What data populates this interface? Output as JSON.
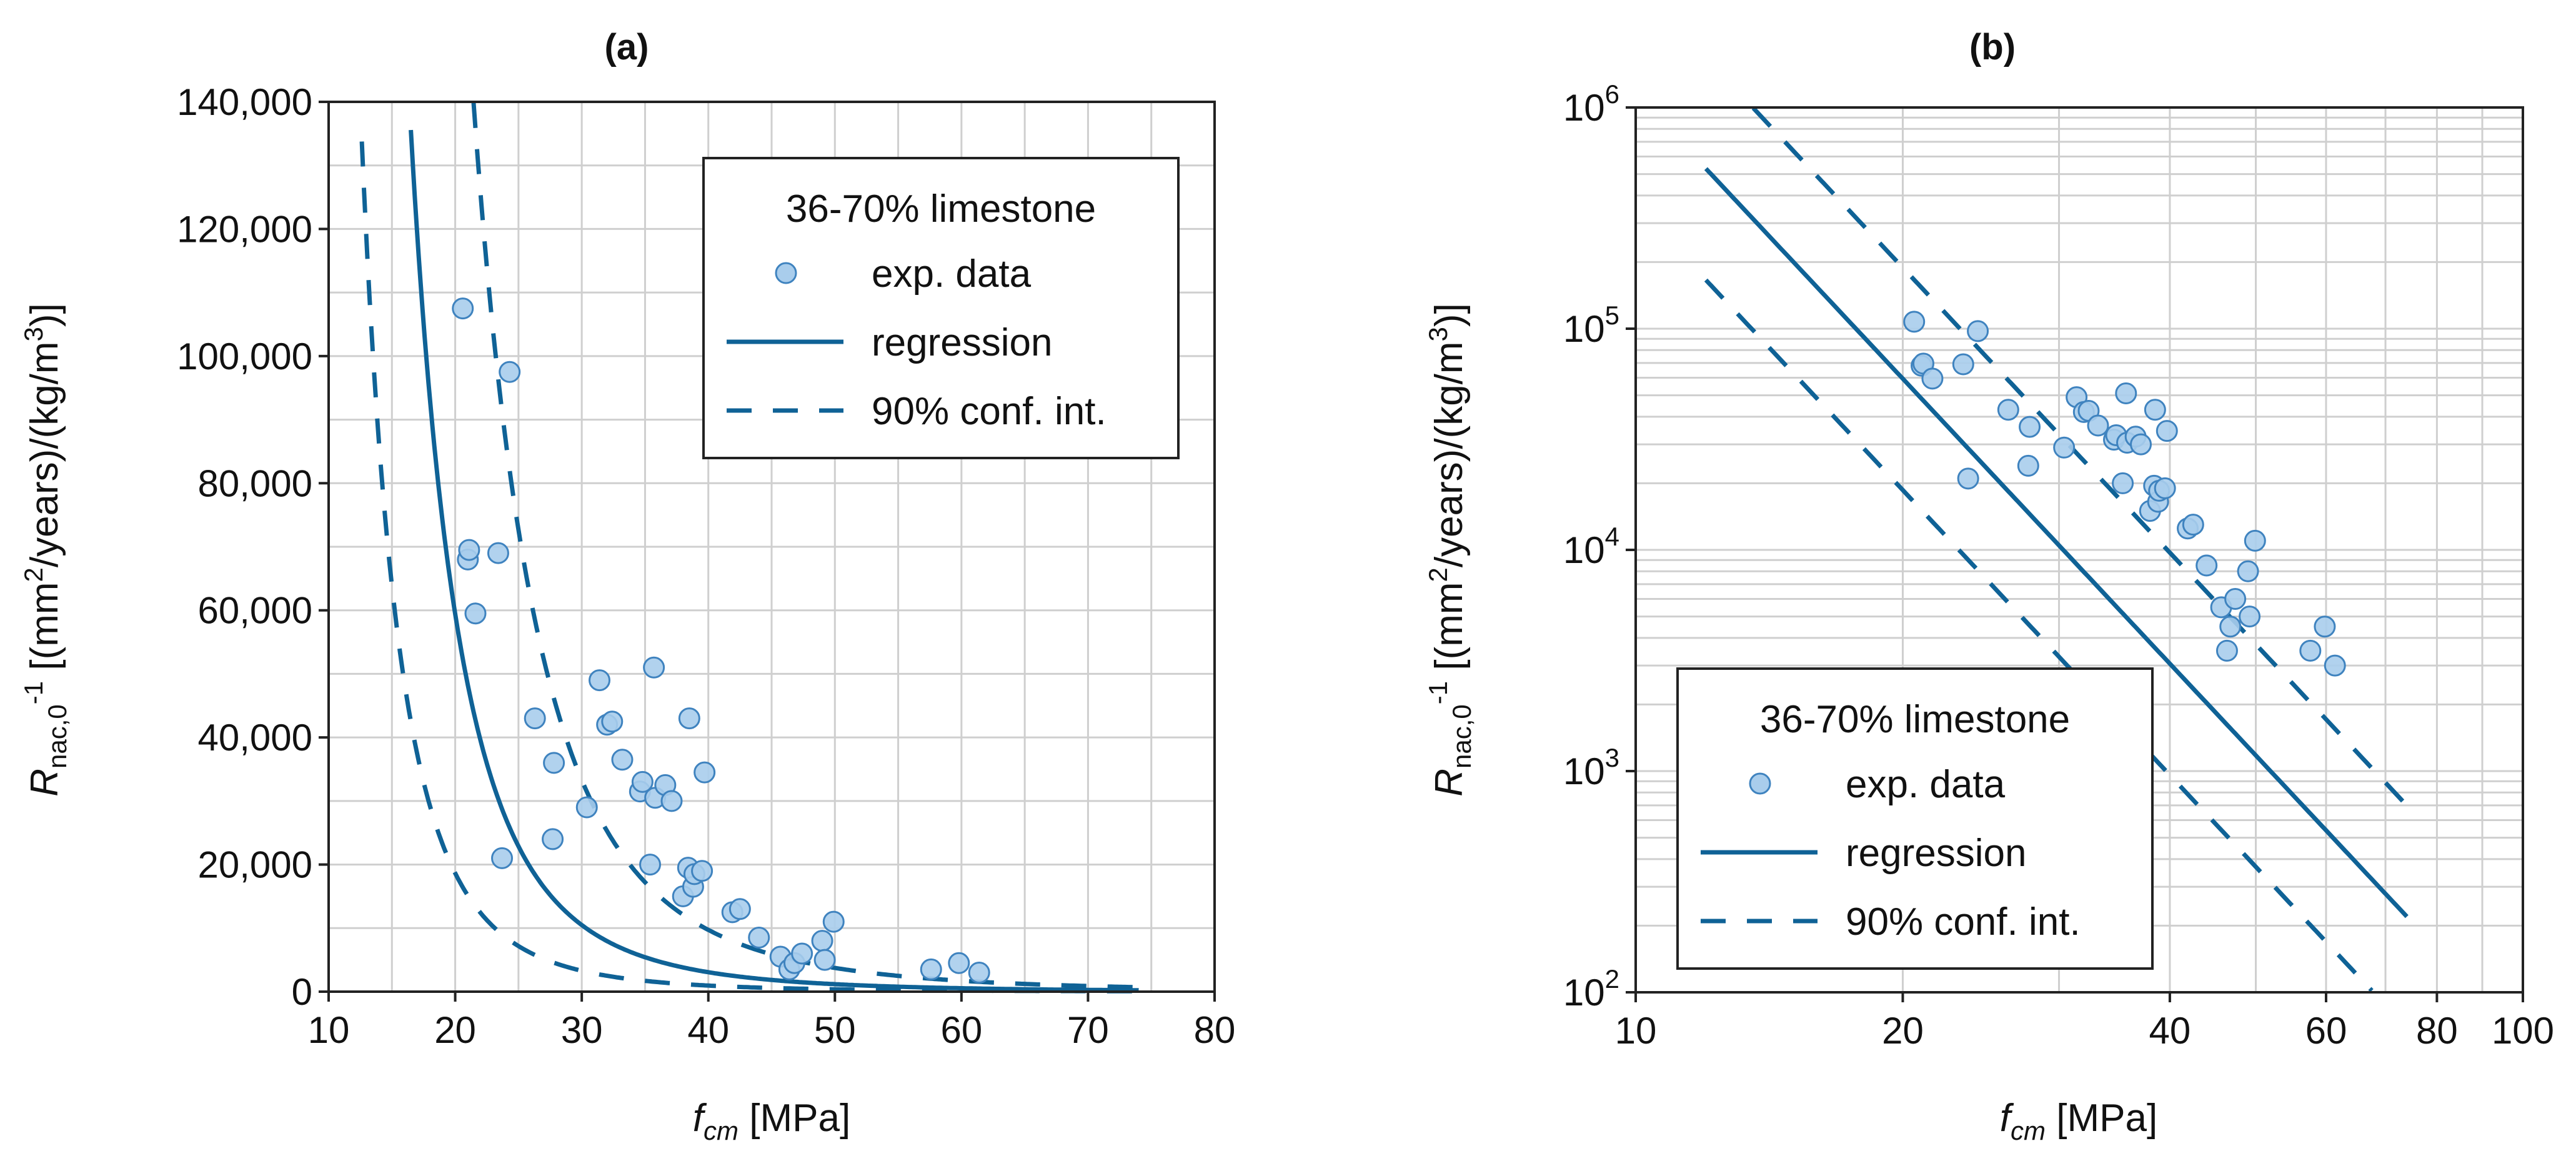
{
  "chart_data": [
    {
      "panel": "(a)",
      "type": "scatter",
      "title": "(a)",
      "xlabel": {
        "main": "f",
        "sub": "cm",
        "rest": " [MPa]"
      },
      "ylabel": {
        "main": "R",
        "sub": "nac,0",
        "sup1": "-1",
        "rest1": " [(mm",
        "sup2": "2",
        "rest2": "/years)/(kg/m",
        "sup3": "3",
        "rest3": ")]"
      },
      "xscale": "linear",
      "yscale": "linear",
      "xlim": [
        10,
        80
      ],
      "ylim": [
        0,
        140000
      ],
      "xticks": [
        10,
        20,
        30,
        40,
        50,
        60,
        70,
        80
      ],
      "yticks": [
        0,
        20000,
        40000,
        60000,
        80000,
        100000,
        120000,
        140000
      ],
      "xtick_labels": [
        "10",
        "20",
        "30",
        "40",
        "50",
        "60",
        "70",
        "80"
      ],
      "ytick_labels": [
        "0",
        "20,000",
        "40,000",
        "60,000",
        "80,000",
        "100,000",
        "120,000",
        "140,000"
      ],
      "grid": true,
      "legend": {
        "placement": "top-right",
        "title": "36-70% limestone",
        "entries": [
          {
            "label": "exp. data",
            "kind": "marker"
          },
          {
            "label": "regression",
            "kind": "solid"
          },
          {
            "label": "90% conf. int.",
            "kind": "dashed"
          }
        ]
      }
    },
    {
      "panel": "(b)",
      "type": "scatter",
      "title": "(b)",
      "xlabel": {
        "main": "f",
        "sub": "cm",
        "rest": " [MPa]"
      },
      "ylabel": {
        "main": "R",
        "sub": "nac,0",
        "sup1": "-1",
        "rest1": " [(mm",
        "sup2": "2",
        "rest2": "/years)/(kg/m",
        "sup3": "3",
        "rest3": ")]"
      },
      "xscale": "log",
      "yscale": "log",
      "xlim": [
        10,
        100
      ],
      "ylim": [
        100,
        1000000
      ],
      "xticks": [
        10,
        20,
        40,
        60,
        80,
        100
      ],
      "xtick_labels": [
        "10",
        "20",
        "40",
        "60",
        "80",
        "100"
      ],
      "yticks": [
        100,
        1000,
        10000,
        100000,
        1000000
      ],
      "ytick_labels": [
        {
          "base": "10",
          "exp": "2"
        },
        {
          "base": "10",
          "exp": "3"
        },
        {
          "base": "10",
          "exp": "4"
        },
        {
          "base": "10",
          "exp": "5"
        },
        {
          "base": "10",
          "exp": "6"
        }
      ],
      "grid": true,
      "legend": {
        "placement": "bottom-left",
        "title": "36-70% limestone",
        "entries": [
          {
            "label": "exp. data",
            "kind": "marker"
          },
          {
            "label": "regression",
            "kind": "solid"
          },
          {
            "label": "90% conf. int.",
            "kind": "dashed"
          }
        ]
      }
    }
  ],
  "shared_series": {
    "colors": {
      "line": "#0f6296",
      "marker_fill": "#a9cdec",
      "marker_edge": "#3f83bf"
    },
    "exp_data": [
      [
        20.6,
        107500
      ],
      [
        21.0,
        68000
      ],
      [
        21.1,
        69500
      ],
      [
        21.6,
        59500
      ],
      [
        23.4,
        69000
      ],
      [
        23.7,
        21000
      ],
      [
        24.3,
        97500
      ],
      [
        26.3,
        43000
      ],
      [
        27.7,
        24000
      ],
      [
        27.8,
        36000
      ],
      [
        30.4,
        29000
      ],
      [
        31.4,
        49000
      ],
      [
        32.0,
        42000
      ],
      [
        32.4,
        42500
      ],
      [
        33.2,
        36500
      ],
      [
        34.6,
        31500
      ],
      [
        34.8,
        33000
      ],
      [
        35.4,
        20000
      ],
      [
        35.7,
        51000
      ],
      [
        35.8,
        30500
      ],
      [
        36.6,
        32500
      ],
      [
        37.1,
        30000
      ],
      [
        38.0,
        15000
      ],
      [
        38.4,
        19500
      ],
      [
        38.5,
        43000
      ],
      [
        38.8,
        16500
      ],
      [
        38.9,
        18500
      ],
      [
        39.5,
        19000
      ],
      [
        39.7,
        34500
      ],
      [
        41.9,
        12500
      ],
      [
        42.5,
        13000
      ],
      [
        44.0,
        8500
      ],
      [
        45.7,
        5500
      ],
      [
        46.4,
        3500
      ],
      [
        46.8,
        4500
      ],
      [
        47.4,
        6000
      ],
      [
        49.0,
        8000
      ],
      [
        49.2,
        5000
      ],
      [
        49.9,
        11000
      ],
      [
        57.6,
        3500
      ],
      [
        59.8,
        4500
      ],
      [
        61.4,
        3000
      ]
    ],
    "regression": {
      "model": "power",
      "a": 22000000000.0,
      "b": -4.28
    },
    "conf_upper": {
      "model": "power",
      "a": 69900000000.0,
      "b": -4.28
    },
    "conf_lower": {
      "model": "power",
      "a": 6900000000.0,
      "b": -4.28
    },
    "fit_x_range": [
      12,
      74
    ]
  }
}
